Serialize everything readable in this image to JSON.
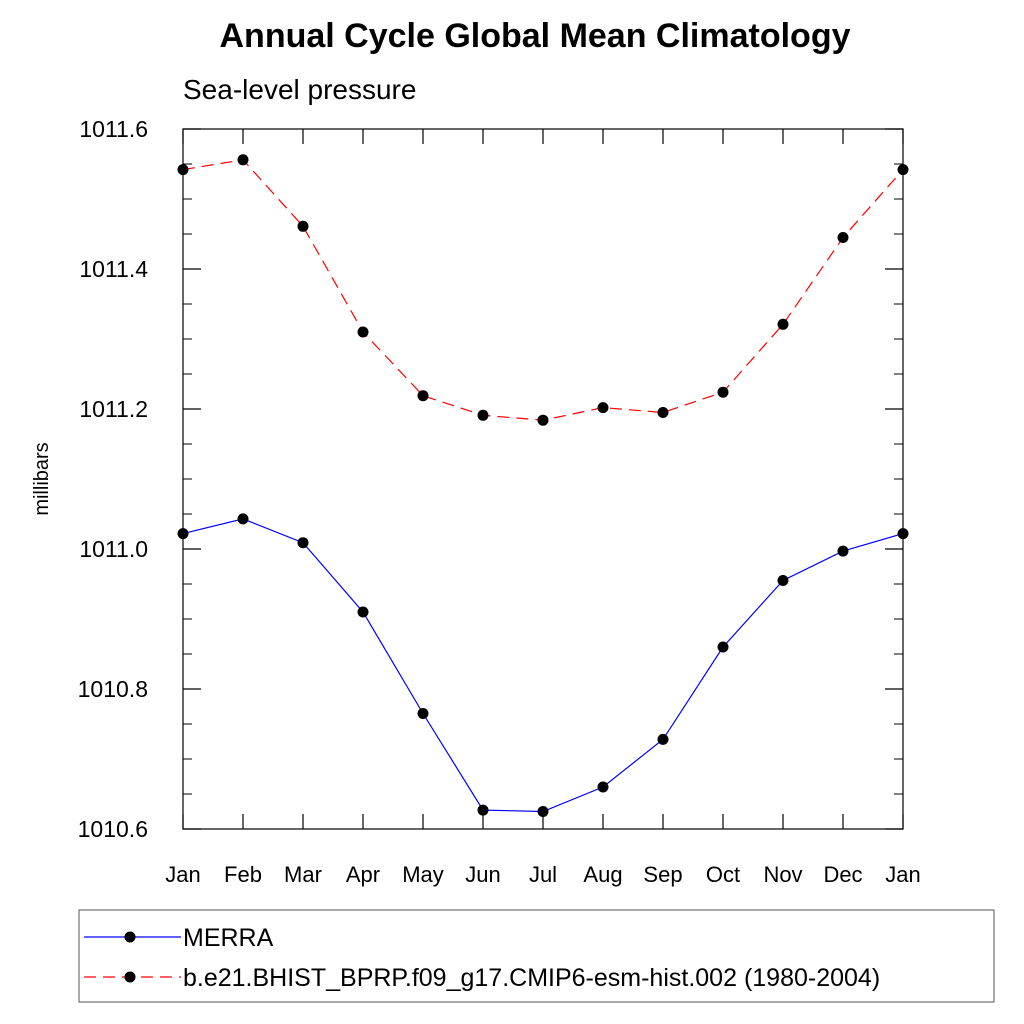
{
  "chart_data": {
    "type": "line",
    "title": "Annual Cycle Global Mean Climatology",
    "subtitle": "Sea-level pressure",
    "xlabel": "",
    "ylabel": "millibars",
    "categories": [
      "Jan",
      "Feb",
      "Mar",
      "Apr",
      "May",
      "Jun",
      "Jul",
      "Aug",
      "Sep",
      "Oct",
      "Nov",
      "Dec",
      "Jan"
    ],
    "ylim": [
      1010.6,
      1011.6
    ],
    "yticks": [
      1010.6,
      1010.8,
      1011.0,
      1011.2,
      1011.4,
      1011.6
    ],
    "ytick_labels": [
      "1010.6",
      "1010.8",
      "1011.0",
      "1011.2",
      "1011.4",
      "1011.6"
    ],
    "grid": false,
    "legend_position": "bottom",
    "series": [
      {
        "name": "MERRA",
        "color": "#0000ff",
        "dash": "solid",
        "marker": "filled-circle",
        "values": [
          1011.022,
          1011.043,
          1011.009,
          1010.91,
          1010.765,
          1010.627,
          1010.625,
          1010.66,
          1010.728,
          1010.86,
          1010.955,
          1010.997,
          1011.022
        ]
      },
      {
        "name": "b.e21.BHIST_BPRP.f09_g17.CMIP6-esm-hist.002 (1980-2004)",
        "color": "#ff0000",
        "dash": "dashed",
        "marker": "filled-circle",
        "values": [
          1011.542,
          1011.556,
          1011.461,
          1011.31,
          1011.219,
          1011.191,
          1011.184,
          1011.202,
          1011.195,
          1011.224,
          1011.321,
          1011.445,
          1011.542
        ]
      }
    ]
  }
}
